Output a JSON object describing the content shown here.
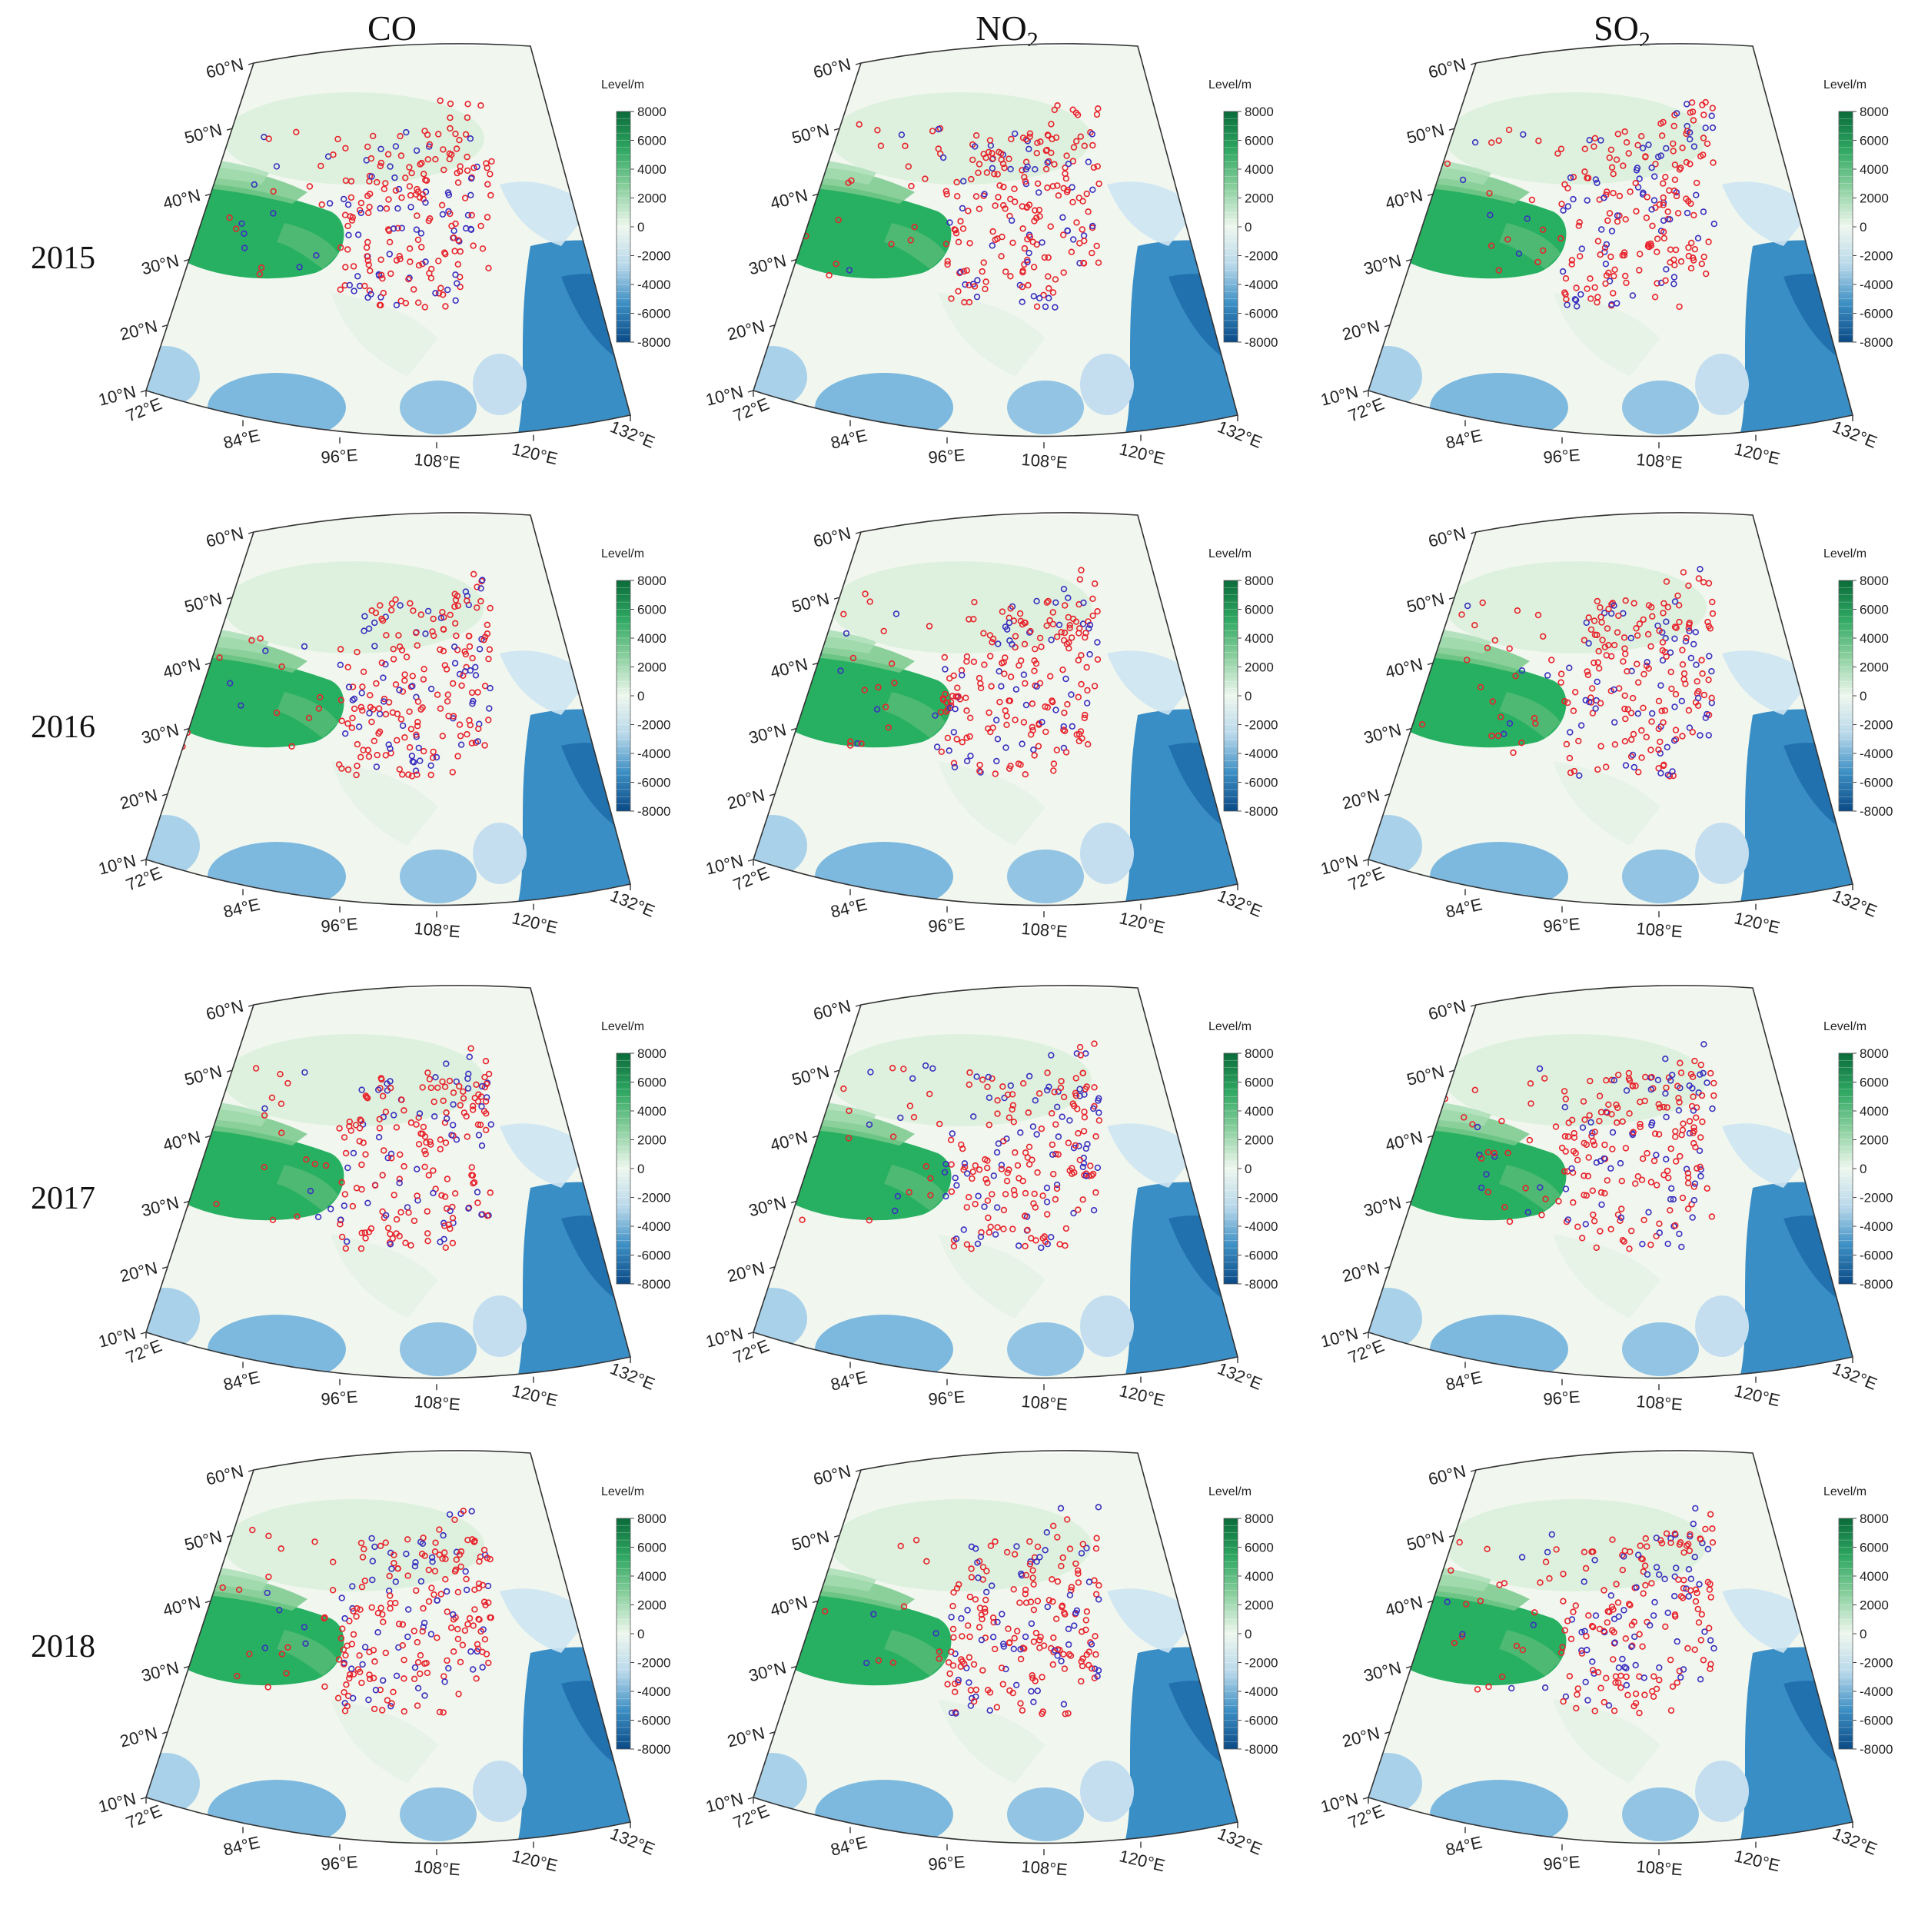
{
  "figure": {
    "columns": [
      {
        "label": "CO",
        "sub": ""
      },
      {
        "label": "NO",
        "sub": "2"
      },
      {
        "label": "SO",
        "sub": "2"
      }
    ],
    "rows": [
      "2015",
      "2016",
      "2017",
      "2018"
    ],
    "map": {
      "lat_labels": [
        "10°N",
        "20°N",
        "30°N",
        "40°N",
        "50°N",
        "60°N"
      ],
      "lon_labels": [
        "72°E",
        "84°E",
        "96°E",
        "108°E",
        "120°E",
        "132°E"
      ],
      "colorbar": {
        "title": "Level/m",
        "ticks": [
          "8000",
          "6000",
          "4000",
          "2000",
          "0",
          "-2000",
          "-4000",
          "-6000",
          "-8000"
        ],
        "colors": [
          "#0a6b3a",
          "#2fa862",
          "#8dd0a0",
          "#eef7ee",
          "#b8d8ea",
          "#3c8fc4",
          "#0b4a86"
        ]
      },
      "marker_colors": {
        "increase": "#e8232c",
        "decrease": "#3b2fc0"
      }
    }
  }
}
